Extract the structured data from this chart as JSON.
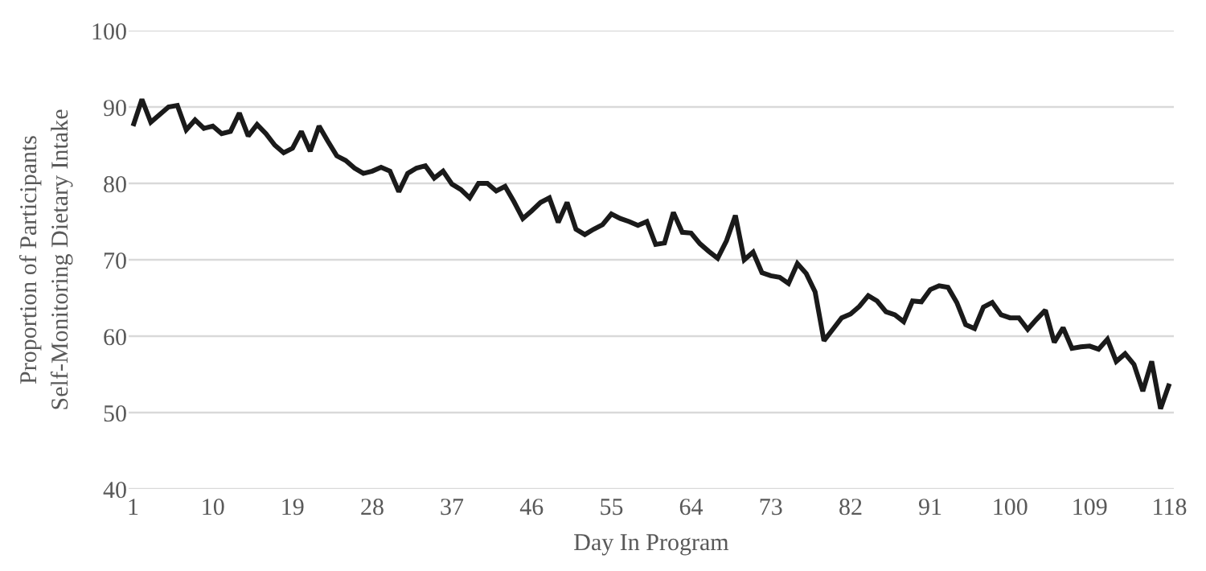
{
  "chart_data": {
    "type": "line",
    "xlabel": "Day In Program",
    "ylabel": "Proportion of Participants Self-Monitoring Dietary Intake",
    "x": [
      1,
      2,
      3,
      4,
      5,
      6,
      7,
      8,
      9,
      10,
      11,
      12,
      13,
      14,
      15,
      16,
      17,
      18,
      19,
      20,
      21,
      22,
      23,
      24,
      25,
      26,
      27,
      28,
      29,
      30,
      31,
      32,
      33,
      34,
      35,
      36,
      37,
      38,
      39,
      40,
      41,
      42,
      43,
      44,
      45,
      46,
      47,
      48,
      49,
      50,
      51,
      52,
      53,
      54,
      55,
      56,
      57,
      58,
      59,
      60,
      61,
      62,
      63,
      64,
      65,
      66,
      67,
      68,
      69,
      70,
      71,
      72,
      73,
      74,
      75,
      76,
      77,
      78,
      79,
      80,
      81,
      82,
      83,
      84,
      85,
      86,
      87,
      88,
      89,
      90,
      91,
      92,
      93,
      94,
      95,
      96,
      97,
      98,
      99,
      100,
      101,
      102,
      103,
      104,
      105,
      106,
      107,
      108,
      109,
      110,
      111,
      112,
      113,
      114,
      115,
      116,
      117,
      118
    ],
    "series": [
      {
        "color": "#1a1a1a",
        "values": [
          87.5,
          91,
          88,
          89,
          90,
          90.2,
          87,
          88.3,
          87.2,
          87.5,
          86.5,
          86.8,
          89.2,
          86.2,
          87.7,
          86.5,
          85,
          84,
          84.6,
          86.8,
          84.2,
          87.5,
          85.5,
          83.6,
          83,
          82,
          81.3,
          81.6,
          82.1,
          81.6,
          78.9,
          81.3,
          82,
          82.3,
          80.7,
          81.6,
          79.9,
          79.2,
          78.1,
          80,
          80,
          79,
          79.6,
          77.6,
          75.4,
          76.4,
          77.5,
          78.1,
          74.9,
          77.5,
          74,
          73.3,
          74,
          74.6,
          76,
          75.4,
          75,
          74.5,
          75,
          72,
          72.2,
          76.2,
          73.6,
          73.5,
          72.1,
          71.1,
          70.2,
          72.5,
          75.8,
          70,
          71,
          68.3,
          67.9,
          67.7,
          66.9,
          69.5,
          68.2,
          65.8,
          59.4,
          60.9,
          62.4,
          62.9,
          63.9,
          65.3,
          64.6,
          63.2,
          62.8,
          61.9,
          64.6,
          64.5,
          66.1,
          66.6,
          66.4,
          64.4,
          61.5,
          61,
          63.8,
          64.4,
          62.8,
          62.4,
          62.4,
          60.9,
          62.2,
          63.4,
          59.2,
          61.1,
          58.4,
          58.6,
          58.7,
          58.3,
          59.6,
          56.7,
          57.7,
          56.3,
          52.8,
          56.7,
          50.5,
          53.8
        ]
      }
    ],
    "xlim": [
      0.5,
      118.5
    ],
    "xticks": [
      1,
      10,
      19,
      28,
      37,
      46,
      55,
      64,
      73,
      82,
      91,
      100,
      109,
      118
    ],
    "ylim": [
      40,
      100
    ],
    "yticks": [
      40,
      50,
      60,
      70,
      80,
      90,
      100
    ],
    "grid": "y",
    "marker": "none",
    "line_style": "solid"
  }
}
